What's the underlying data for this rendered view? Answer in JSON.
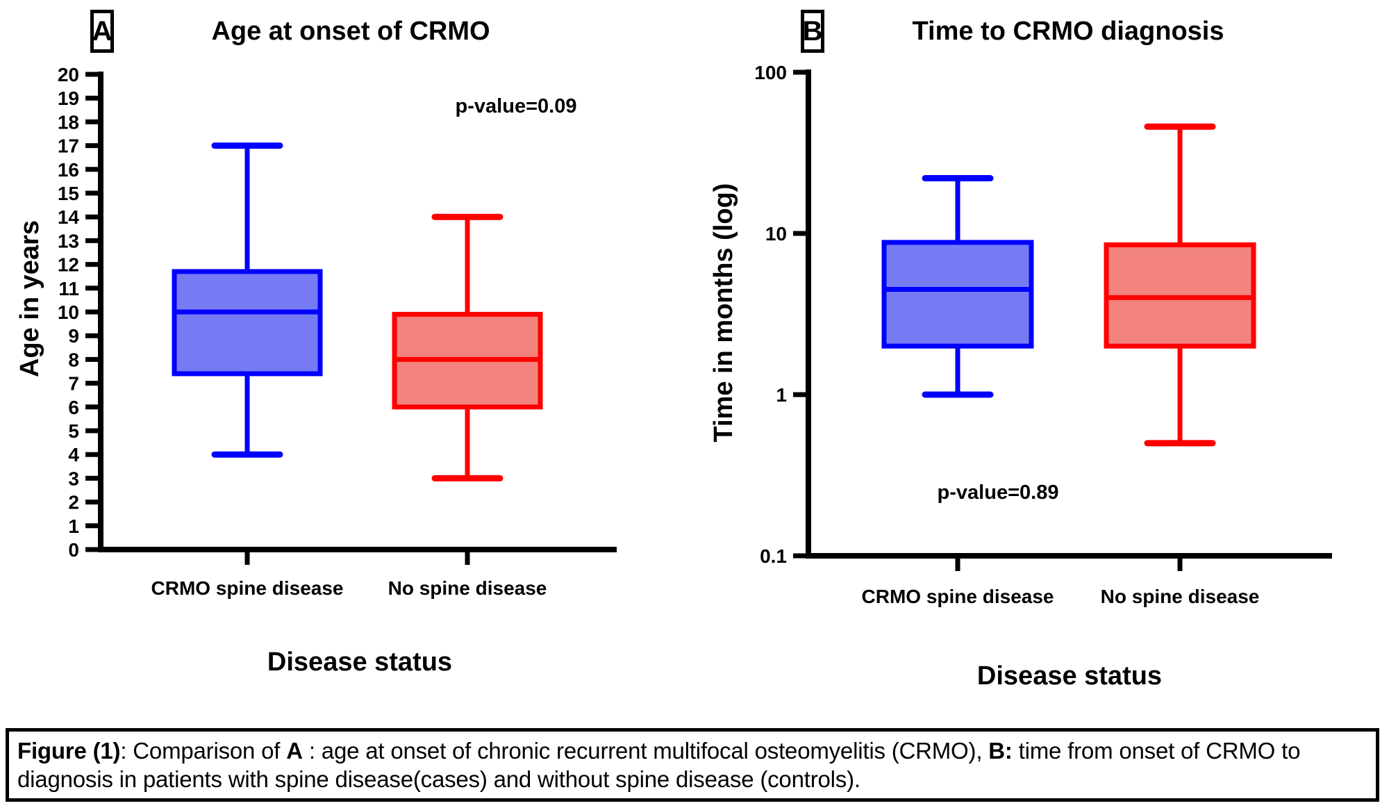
{
  "chart_data": [
    {
      "type": "box",
      "panel_label": "A",
      "title": "Age at onset of CRMO",
      "xlabel": "Disease status",
      "ylabel": "Age in years",
      "yscale": "linear",
      "ylim": [
        0,
        20
      ],
      "yticks": [
        20,
        19,
        18,
        17,
        16,
        15,
        14,
        13,
        12,
        11,
        10,
        9,
        8,
        7,
        6,
        5,
        4,
        3,
        2,
        1,
        0
      ],
      "categories": [
        "CRMO spine disease",
        "No spine disease"
      ],
      "annotation": "p-value=0.09",
      "series": [
        {
          "name": "CRMO spine disease",
          "stroke": "#0000fe",
          "fill": "#767bf4",
          "whisker_low": 4,
          "q1": 7.4,
          "median": 10,
          "q3": 11.7,
          "whisker_high": 17
        },
        {
          "name": "No spine disease",
          "stroke": "#fe0000",
          "fill": "#f2837e",
          "whisker_low": 3,
          "q1": 6,
          "median": 8,
          "q3": 9.9,
          "whisker_high": 14
        }
      ]
    },
    {
      "type": "box",
      "panel_label": "B",
      "title": "Time to CRMO diagnosis",
      "xlabel": "Disease status",
      "ylabel": "Time in months (log)",
      "yscale": "log",
      "ylim": [
        0.1,
        100
      ],
      "yticks": [
        100,
        10,
        1,
        0.1
      ],
      "categories": [
        "CRMO spine disease",
        "No spine disease"
      ],
      "annotation": "p-value=0.89",
      "series": [
        {
          "name": "CRMO spine disease",
          "stroke": "#0000fe",
          "fill": "#767bf4",
          "whisker_low": 1,
          "q1": 2.0,
          "median": 4.5,
          "q3": 8.8,
          "whisker_high": 22
        },
        {
          "name": "No spine disease",
          "stroke": "#fe0000",
          "fill": "#f2837e",
          "whisker_low": 0.5,
          "q1": 2.0,
          "median": 4.0,
          "q3": 8.5,
          "whisker_high": 46
        }
      ]
    }
  ],
  "caption": {
    "segments": [
      {
        "text": "Figure (1)",
        "bold": true
      },
      {
        "text": ": Comparison of ",
        "bold": false
      },
      {
        "text": "A",
        "bold": true
      },
      {
        "text": " : age at onset of chronic recurrent multifocal osteomyelitis (CRMO), ",
        "bold": false
      },
      {
        "text": "B:",
        "bold": true
      },
      {
        "text": " time from onset of CRMO to diagnosis in patients with spine disease(cases) and without spine disease (controls).",
        "bold": false
      }
    ]
  }
}
